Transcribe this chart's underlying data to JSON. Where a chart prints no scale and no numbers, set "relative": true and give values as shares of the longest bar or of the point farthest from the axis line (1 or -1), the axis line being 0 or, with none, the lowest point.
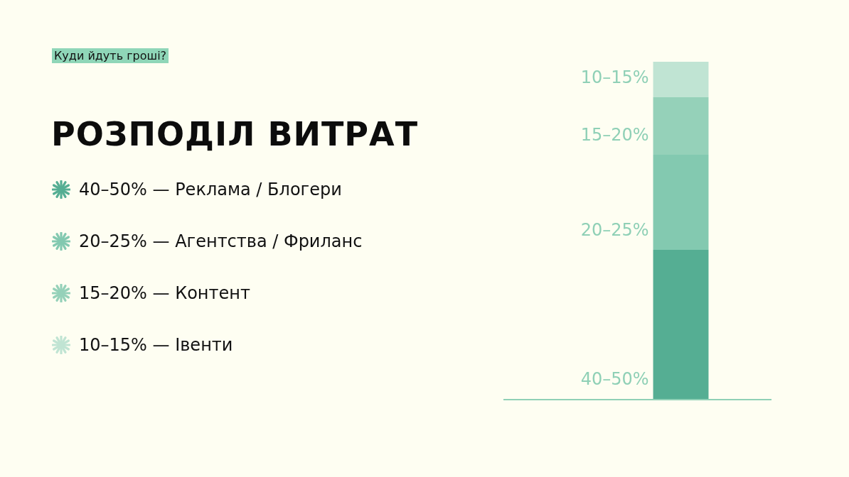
{
  "chart_data": {
    "type": "bar",
    "title": "РОЗПОДІЛ ВИТРАТ",
    "subtitle": "Куди йдуть гроші?",
    "categories": [
      null
    ],
    "stacked": true,
    "relative": true,
    "legend": "left",
    "annotations": [
      "40–50%",
      "20–25%",
      "15–20%",
      "10–15%"
    ],
    "series": [
      {
        "name": "40–50% — Реклама / Блогери",
        "color": "#55ae93",
        "values": [
          0.442
        ]
      },
      {
        "name": "20–25% — Агентства / Фриланс",
        "color": "#83c9b0",
        "values": [
          0.282
        ]
      },
      {
        "name": "15–20% — Контент",
        "color": "#95d1b9",
        "values": [
          0.171
        ]
      },
      {
        "name": "10–15% — Івенти",
        "color": "#c0e4d3",
        "values": [
          0.105
        ]
      }
    ]
  }
}
